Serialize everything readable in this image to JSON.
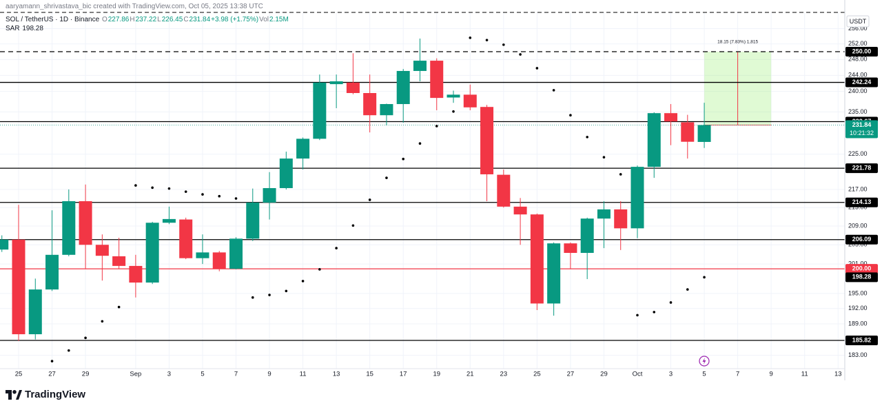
{
  "chart_data": {
    "type": "candlestick",
    "attribution": "aaryamann_shrivastava_bic created with TradingView.com, Oct 05, 2025 13:38 UTC",
    "symbol": "SOL / TetherUS · 1D · Binance",
    "ohlc_legend": [
      {
        "label": "O",
        "value": 227.86
      },
      {
        "label": "H",
        "value": 237.22
      },
      {
        "label": "L",
        "value": 226.45
      },
      {
        "label": "C",
        "value": 231.84
      }
    ],
    "change": "+3.98 (+1.75%)",
    "volume": {
      "label": "Vol",
      "value": "2.15M"
    },
    "currency": "USDT",
    "brand": "TradingView",
    "categories": [
      null,
      "25",
      null,
      "27",
      null,
      "29",
      null,
      null,
      "Sep",
      null,
      "3",
      null,
      "5",
      null,
      "7",
      null,
      "9",
      null,
      "11",
      null,
      "13",
      null,
      "15",
      null,
      "17",
      null,
      "19",
      null,
      "21",
      null,
      "23",
      null,
      "25",
      null,
      "27",
      null,
      "29",
      null,
      "Oct",
      null,
      "3",
      null,
      "5",
      null,
      "7",
      null,
      "9",
      null,
      "11",
      null,
      "13"
    ],
    "open": [
      204.0,
      206.1,
      187.0,
      195.8,
      202.9,
      214.4,
      205.0,
      202.6,
      200.6,
      197.2,
      209.7,
      210.4,
      202.2,
      203.4,
      200.0,
      206.3,
      214.1,
      217.3,
      224.0,
      228.6,
      241.8,
      242.2,
      239.6,
      234.2,
      236.9,
      245.1,
      247.7,
      238.5,
      239.2,
      236.2,
      220.3,
      213.2,
      211.5,
      193.0,
      205.3,
      203.3,
      210.6,
      212.6,
      208.5,
      222.1,
      234.7,
      232.5,
      227.86,
      null,
      null,
      null,
      null,
      null,
      null,
      null,
      null
    ],
    "high": [
      207.0,
      213.6,
      198.0,
      212.4,
      217.0,
      218.1,
      207.2,
      206.5,
      202.9,
      209.9,
      213.2,
      210.8,
      207.2,
      203.7,
      206.6,
      217.2,
      220.9,
      225.6,
      228.9,
      244.2,
      244.2,
      249.6,
      244.2,
      237.0,
      245.6,
      253.4,
      248.3,
      240.2,
      241.7,
      236.7,
      221.5,
      215.1,
      211.7,
      205.5,
      205.5,
      210.8,
      214.4,
      214.4,
      222.4,
      234.9,
      236.9,
      234.3,
      237.22,
      null,
      null,
      null,
      null,
      null,
      null,
      null,
      null
    ],
    "low": [
      203.5,
      185.7,
      186.0,
      195.5,
      202.6,
      200.0,
      197.6,
      200.0,
      194.2,
      196.9,
      209.4,
      202.0,
      201.0,
      199.5,
      199.9,
      205.8,
      210.4,
      217.0,
      221.5,
      228.3,
      235.9,
      239.3,
      230.1,
      231.8,
      232.4,
      242.5,
      235.4,
      237.2,
      235.4,
      214.4,
      213.0,
      205.0,
      191.7,
      190.6,
      200.0,
      197.9,
      204.3,
      203.9,
      206.4,
      219.6,
      227.1,
      224.0,
      226.45,
      null,
      null,
      null,
      null,
      null,
      null,
      null,
      null
    ],
    "close": [
      206.1,
      187.0,
      195.8,
      202.9,
      214.4,
      205.0,
      202.7,
      200.6,
      197.2,
      209.7,
      210.5,
      202.2,
      203.4,
      200.0,
      206.3,
      214.1,
      217.3,
      224.0,
      228.6,
      242.2,
      242.5,
      239.6,
      234.2,
      236.9,
      245.1,
      247.7,
      238.4,
      239.2,
      236.1,
      220.4,
      213.2,
      211.5,
      193.0,
      205.3,
      203.3,
      210.6,
      212.6,
      208.5,
      222.1,
      234.7,
      232.7,
      227.9,
      231.84,
      null,
      null,
      null,
      null,
      null,
      null,
      null,
      null
    ],
    "up_color": "#089981",
    "down_color": "#f23645",
    "sar": {
      "name": "SAR",
      "color": "#000000",
      "values": [
        null,
        null,
        null,
        181.9,
        183.9,
        186.3,
        189.5,
        192.3,
        217.9,
        217.4,
        217.2,
        216.5,
        215.9,
        215.5,
        215.0,
        194.2,
        194.7,
        195.5,
        197.5,
        199.9,
        204.3,
        209.1,
        214.7,
        219.6,
        223.9,
        227.5,
        231.6,
        235.1,
        253.6,
        253.0,
        251.8,
        249.3,
        245.8,
        240.3,
        234.2,
        229.0,
        224.3,
        220.4,
        190.7,
        191.3,
        193.2,
        195.8,
        198.28,
        null,
        null,
        null,
        null,
        null,
        null,
        null,
        null
      ]
    },
    "levels": [
      {
        "value": 250,
        "label": "250.00",
        "color": "#000000",
        "style": "dashed"
      },
      {
        "value": 242.24,
        "color": "#000000",
        "style": "solid"
      },
      {
        "value": 232.67,
        "color": "#000000",
        "style": "solid"
      },
      {
        "value": 221.78,
        "color": "#000000",
        "style": "solid"
      },
      {
        "value": 214.13,
        "color": "#000000",
        "style": "solid"
      },
      {
        "value": 206.09,
        "color": "#000000",
        "style": "solid"
      },
      {
        "value": 200,
        "label": "200.00",
        "color": "#f23645",
        "style": "solid"
      },
      {
        "value": 185.82,
        "color": "#000000",
        "style": "solid"
      }
    ],
    "countdown": "10:21:32",
    "measure": {
      "text": "18.15 (7.83%) 1,815",
      "from": 231.85,
      "to": 250
    },
    "log_scale": true,
    "grid": true,
    "ylim": [
      180.5,
      260.3
    ],
    "yticks": [
      {
        "value": 256,
        "label": "256.00"
      },
      {
        "value": 252,
        "label": "252.00"
      },
      {
        "value": 248,
        "label": "248.00"
      },
      {
        "value": 244,
        "label": "244.00"
      },
      {
        "value": 240,
        "label": "240.00"
      },
      {
        "value": 235,
        "label": "235.00"
      },
      {
        "value": 225,
        "label": "225.00"
      },
      {
        "value": 217,
        "label": "217.00"
      },
      {
        "value": 213,
        "label": "213.00"
      },
      {
        "value": 209,
        "label": "209.00"
      },
      {
        "value": 205,
        "label": "205.00"
      },
      {
        "value": 201,
        "label": "201.00"
      },
      {
        "value": 195,
        "label": "195.00"
      },
      {
        "value": 192,
        "label": "192.00"
      },
      {
        "value": 189,
        "label": "189.00"
      },
      {
        "value": 183,
        "label": "183.00"
      }
    ]
  }
}
